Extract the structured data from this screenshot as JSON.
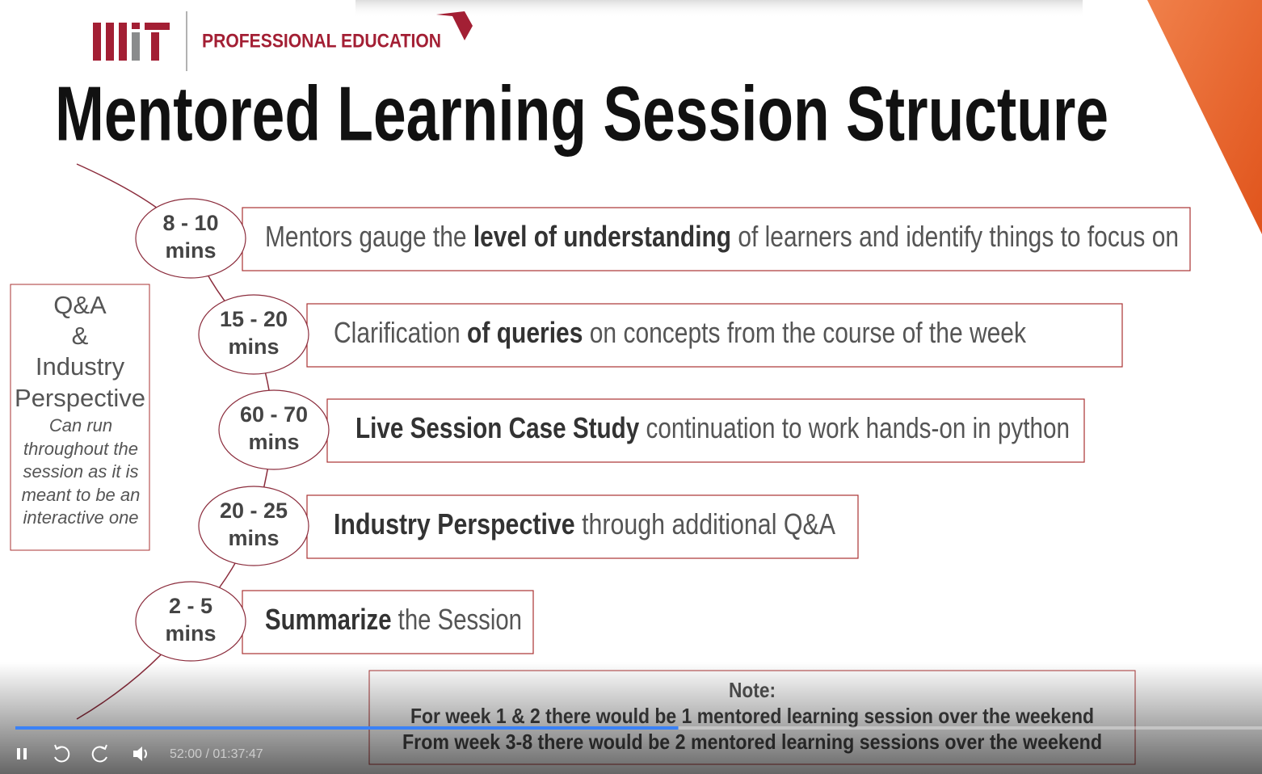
{
  "header": {
    "brand": "PROFESSIONAL EDUCATION",
    "title": "Mentored Learning Session Structure"
  },
  "steps": [
    {
      "duration": [
        "8 - 10",
        "mins"
      ],
      "segments": [
        {
          "text": "Mentors gauge the ",
          "bold": false
        },
        {
          "text": "level of understanding",
          "bold": true
        },
        {
          "text": " of learners and identify things to focus on",
          "bold": false
        }
      ]
    },
    {
      "duration": [
        "15 - 20",
        "mins"
      ],
      "segments": [
        {
          "text": "Clarification ",
          "bold": false
        },
        {
          "text": "of queries",
          "bold": true
        },
        {
          "text": " on concepts from the course of the week",
          "bold": false
        }
      ]
    },
    {
      "duration": [
        "60 - 70",
        "mins"
      ],
      "segments": [
        {
          "text": "Live Session Case Study",
          "bold": true
        },
        {
          "text": " continuation to work hands-on in python",
          "bold": false
        }
      ]
    },
    {
      "duration": [
        "20 - 25",
        "mins"
      ],
      "segments": [
        {
          "text": "Industry Perspective",
          "bold": true
        },
        {
          "text": " through additional Q&A",
          "bold": false
        }
      ]
    },
    {
      "duration": [
        "2 - 5",
        "mins"
      ],
      "segments": [
        {
          "text": "Summarize",
          "bold": true
        },
        {
          "text": " the Session",
          "bold": false
        }
      ]
    }
  ],
  "side_box": {
    "heading": [
      "Q&A",
      "&",
      "Industry",
      "Perspective"
    ],
    "note": [
      "Can run",
      "throughout the",
      "session as it is",
      "meant to be an",
      "interactive one"
    ]
  },
  "note": {
    "label": "Note:",
    "lines": [
      "For week 1 & 2 there would be 1 mentored learning session over the weekend",
      "From week 3-8 there would be 2 mentored learning sessions over the weekend"
    ]
  },
  "player": {
    "elapsed": "52:00",
    "total": "01:37:47",
    "time_text": "52:00 / 01:37:47"
  }
}
